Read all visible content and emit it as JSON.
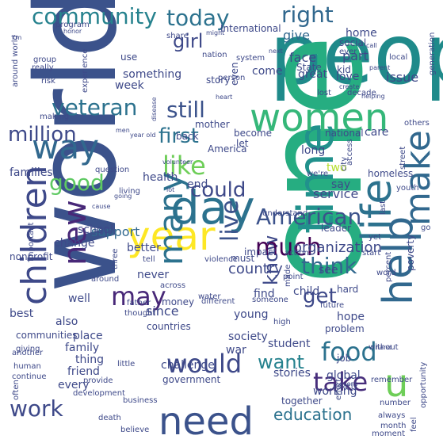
{
  "words": [
    {
      "text": "people",
      "color": "#1f8a8a"
    },
    {
      "text": "one",
      "color": "#26ad81"
    },
    {
      "text": "world",
      "color": "#3b528b"
    },
    {
      "text": "time",
      "color": "#21918c"
    },
    {
      "text": "day",
      "color": "#2c728e"
    },
    {
      "text": "year",
      "color": "#fde725"
    },
    {
      "text": "need",
      "color": "#3b528b"
    },
    {
      "text": "women",
      "color": "#35b779"
    },
    {
      "text": "life",
      "color": "#2c728e"
    },
    {
      "text": "help",
      "color": "#31688e"
    },
    {
      "text": "make",
      "color": "#31688e"
    },
    {
      "text": "children",
      "color": "#3e4989"
    },
    {
      "text": "way",
      "color": "#31688e"
    },
    {
      "text": "u",
      "color": "#6ece58"
    },
    {
      "text": "new",
      "color": "#482878"
    },
    {
      "text": "many",
      "color": "#2c728e"
    },
    {
      "text": "community",
      "color": "#26828e"
    },
    {
      "text": "today",
      "color": "#2c728e"
    },
    {
      "text": "right",
      "color": "#31688e"
    },
    {
      "text": "veteran",
      "color": "#2c728e"
    },
    {
      "text": "still",
      "color": "#3b528b"
    },
    {
      "text": "first",
      "color": "#2c728e"
    },
    {
      "text": "like",
      "color": "#6ece58"
    },
    {
      "text": "million",
      "color": "#3e4989"
    },
    {
      "text": "good",
      "color": "#5ec962"
    },
    {
      "text": "could",
      "color": "#3e4989"
    },
    {
      "text": "American",
      "color": "#3b528b"
    },
    {
      "text": "live",
      "color": "#3b528b"
    },
    {
      "text": "know",
      "color": "#3e4989"
    },
    {
      "text": "much",
      "color": "#440154"
    },
    {
      "text": "think",
      "color": "#31688e"
    },
    {
      "text": "get",
      "color": "#3e4989"
    },
    {
      "text": "food",
      "color": "#2c728e"
    },
    {
      "text": "may",
      "color": "#482878"
    },
    {
      "text": "would",
      "color": "#3e4989"
    },
    {
      "text": "want",
      "color": "#26828e"
    },
    {
      "text": "take",
      "color": "#472d7b"
    },
    {
      "text": "work",
      "color": "#3e4989"
    },
    {
      "text": "girl",
      "color": "#3e4989"
    },
    {
      "text": "organization",
      "color": "#3e4989"
    },
    {
      "text": "education",
      "color": "#2c728e"
    },
    {
      "text": "country",
      "color": "#3e4989"
    },
    {
      "text": "support",
      "color": "#31688e"
    },
    {
      "text": "service",
      "color": "#3e4989"
    },
    {
      "text": "give",
      "color": "#31688e"
    },
    {
      "text": "face",
      "color": "#3e4989"
    },
    {
      "text": "home",
      "color": "#3e4989"
    },
    {
      "text": "part",
      "color": "#3e4989"
    },
    {
      "text": "issue",
      "color": "#3e4989"
    },
    {
      "text": "love",
      "color": "#3e4989"
    },
    {
      "text": "great",
      "color": "#3e4989"
    },
    {
      "text": "come",
      "color": "#3e4989"
    },
    {
      "text": "two",
      "color": "#b5de2b"
    },
    {
      "text": "say",
      "color": "#3e4989"
    },
    {
      "text": "end",
      "color": "#3e4989"
    },
    {
      "text": "must",
      "color": "#3e4989"
    },
    {
      "text": "impact",
      "color": "#3e4989"
    },
    {
      "text": "see",
      "color": "#3e4989"
    },
    {
      "text": "find",
      "color": "#3e4989"
    },
    {
      "text": "young",
      "color": "#3e4989"
    },
    {
      "text": "society",
      "color": "#3e4989"
    },
    {
      "text": "war",
      "color": "#3e4989"
    },
    {
      "text": "since",
      "color": "#3e4989"
    },
    {
      "text": "never",
      "color": "#3e4989"
    },
    {
      "text": "well",
      "color": "#3e4989"
    },
    {
      "text": "also",
      "color": "#3e4989"
    },
    {
      "text": "family",
      "color": "#3e4989"
    },
    {
      "text": "place",
      "color": "#3e4989"
    },
    {
      "text": "thing",
      "color": "#3e4989"
    },
    {
      "text": "friend",
      "color": "#3e4989"
    },
    {
      "text": "every",
      "color": "#3e4989"
    },
    {
      "text": "best",
      "color": "#3e4989"
    },
    {
      "text": "health",
      "color": "#3e4989"
    },
    {
      "text": "better",
      "color": "#3e4989"
    },
    {
      "text": "change",
      "color": "#3e4989"
    },
    {
      "text": "school",
      "color": "#3e4989"
    },
    {
      "text": "families",
      "color": "#3e4989"
    },
    {
      "text": "something",
      "color": "#3e4989"
    },
    {
      "text": "week",
      "color": "#3e4989"
    },
    {
      "text": "mother",
      "color": "#3e4989"
    },
    {
      "text": "back",
      "color": "#3e4989"
    },
    {
      "text": "even",
      "color": "#3e4989"
    },
    {
      "text": "long",
      "color": "#3e4989"
    },
    {
      "text": "care",
      "color": "#3e4989"
    },
    {
      "text": "child",
      "color": "#3e4989"
    },
    {
      "text": "global",
      "color": "#3e4989"
    },
    {
      "text": "working",
      "color": "#3e4989"
    },
    {
      "text": "stories",
      "color": "#3e4989"
    },
    {
      "text": "hope",
      "color": "#3e4989"
    },
    {
      "text": "problem",
      "color": "#3e4989"
    },
    {
      "text": "student",
      "color": "#3e4989"
    },
    {
      "text": "job",
      "color": "#3e4989"
    },
    {
      "text": "together",
      "color": "#3e4989"
    },
    {
      "text": "challenge",
      "color": "#3e4989"
    },
    {
      "text": "government",
      "color": "#3e4989"
    },
    {
      "text": "countries",
      "color": "#3e4989"
    },
    {
      "text": "money",
      "color": "#3e4989"
    },
    {
      "text": "communities",
      "color": "#3e4989"
    },
    {
      "text": "nonprofit",
      "color": "#3e4989"
    },
    {
      "text": "poverty",
      "color": "#3e4989"
    },
    {
      "text": "leader",
      "color": "#3e4989"
    },
    {
      "text": "homeless",
      "color": "#3e4989"
    },
    {
      "text": "national",
      "color": "#3e4989"
    },
    {
      "text": "become",
      "color": "#3e4989"
    },
    {
      "text": "let",
      "color": "#3e4989"
    },
    {
      "text": "America",
      "color": "#3e4989"
    },
    {
      "text": "story",
      "color": "#3e4989"
    },
    {
      "text": "use",
      "color": "#3e4989"
    },
    {
      "text": "social",
      "color": "#3e4989"
    },
    {
      "text": "State",
      "color": "#3e4989"
    },
    {
      "text": "kid",
      "color": "#3e4989"
    },
    {
      "text": "International",
      "color": "#3e4989"
    },
    {
      "text": "program",
      "color": "#3e4989"
    },
    {
      "text": "really",
      "color": "#3e4989"
    },
    {
      "text": "group",
      "color": "#3e4989"
    },
    {
      "text": "risk",
      "color": "#3e4989"
    },
    {
      "text": "making",
      "color": "#3e4989"
    },
    {
      "text": "experience",
      "color": "#3e4989"
    },
    {
      "text": "question",
      "color": "#3e4989"
    },
    {
      "text": "living",
      "color": "#3e4989"
    },
    {
      "text": "important",
      "color": "#3e4989"
    },
    {
      "text": "giving",
      "color": "#3e4989"
    },
    {
      "text": "another",
      "color": "#3e4989"
    },
    {
      "text": "human",
      "color": "#3e4989"
    },
    {
      "text": "continue",
      "color": "#3e4989"
    },
    {
      "text": "often",
      "color": "#3e4989"
    },
    {
      "text": "provide",
      "color": "#3e4989"
    },
    {
      "text": "development",
      "color": "#3e4989"
    },
    {
      "text": "business",
      "color": "#3e4989"
    },
    {
      "text": "death",
      "color": "#3e4989"
    },
    {
      "text": "believe",
      "color": "#3e4989"
    },
    {
      "text": "little",
      "color": "#3e4989"
    },
    {
      "text": "thought",
      "color": "#3e4989"
    },
    {
      "text": "father",
      "color": "#3e4989"
    },
    {
      "text": "around",
      "color": "#3e4989"
    },
    {
      "text": "three",
      "color": "#3e4989"
    },
    {
      "text": "tell",
      "color": "#3e4989"
    },
    {
      "text": "across",
      "color": "#3e4989"
    },
    {
      "text": "violence",
      "color": "#3e4989"
    },
    {
      "text": "water",
      "color": "#3e4989"
    },
    {
      "text": "different",
      "color": "#3e4989"
    },
    {
      "text": "someone",
      "color": "#3e4989"
    },
    {
      "text": "made",
      "color": "#3e4989"
    },
    {
      "text": "action",
      "color": "#3e4989"
    },
    {
      "text": "point",
      "color": "#3e4989"
    },
    {
      "text": "hard",
      "color": "#3e4989"
    },
    {
      "text": "future",
      "color": "#3e4989"
    },
    {
      "text": "high",
      "color": "#3e4989"
    },
    {
      "text": "effort",
      "color": "#3e4989"
    },
    {
      "text": "nearly",
      "color": "#3e4989"
    },
    {
      "text": "number",
      "color": "#3e4989"
    },
    {
      "text": "always",
      "color": "#3e4989"
    },
    {
      "text": "month",
      "color": "#3e4989"
    },
    {
      "text": "moment",
      "color": "#3e4989"
    },
    {
      "text": "feel",
      "color": "#3e4989"
    },
    {
      "text": "opportunity",
      "color": "#3e4989"
    },
    {
      "text": "remember",
      "color": "#3e4989"
    },
    {
      "text": "without",
      "color": "#3e4989"
    },
    {
      "text": "word",
      "color": "#3e4989"
    },
    {
      "text": "percent",
      "color": "#3e4989"
    },
    {
      "text": "hand",
      "color": "#3e4989"
    },
    {
      "text": "event",
      "color": "#3e4989"
    },
    {
      "text": "last",
      "color": "#3e4989"
    },
    {
      "text": "yet",
      "color": "#3e4989"
    },
    {
      "text": "start",
      "color": "#3e4989"
    },
    {
      "text": "go",
      "color": "#3e4989"
    },
    {
      "text": "youth",
      "color": "#3e4989"
    },
    {
      "text": "understand",
      "color": "#3e4989"
    },
    {
      "text": "city",
      "color": "#3e4989"
    },
    {
      "text": "access",
      "color": "#3e4989"
    },
    {
      "text": "we're",
      "color": "#3e4989"
    },
    {
      "text": "others",
      "color": "#3e4989"
    },
    {
      "text": "decade",
      "color": "#3e4989"
    },
    {
      "text": "lost",
      "color": "#3e4989"
    },
    {
      "text": "heart",
      "color": "#3e4989"
    },
    {
      "text": "men",
      "color": "#3e4989"
    },
    {
      "text": "year old",
      "color": "#3e4989"
    },
    {
      "text": "disease",
      "color": "#3e4989"
    },
    {
      "text": "volunteer",
      "color": "#3e4989"
    },
    {
      "text": "going",
      "color": "#3e4989"
    },
    {
      "text": "cause",
      "color": "#3e4989"
    },
    {
      "text": "lot",
      "color": "#3e4989"
    },
    {
      "text": "person",
      "color": "#3e4989"
    },
    {
      "text": "nation",
      "color": "#3e4989"
    },
    {
      "text": "might",
      "color": "#3e4989"
    },
    {
      "text": "share",
      "color": "#3e4989"
    },
    {
      "text": "honor",
      "color": "#3e4989"
    },
    {
      "text": "I'm",
      "color": "#3e4989"
    },
    {
      "text": "around world",
      "color": "#3e4989"
    },
    {
      "text": "system",
      "color": "#3e4989"
    },
    {
      "text": "next",
      "color": "#3e4989"
    },
    {
      "text": "ever",
      "color": "#3e4989"
    },
    {
      "text": "call",
      "color": "#3e4989"
    },
    {
      "text": "create",
      "color": "#3e4989"
    },
    {
      "text": "helping",
      "color": "#3e4989"
    },
    {
      "text": "parent",
      "color": "#3e4989"
    },
    {
      "text": "local",
      "color": "#3e4989"
    },
    {
      "text": "street",
      "color": "#3e4989"
    },
    {
      "text": "generation",
      "color": "#3e4989"
    }
  ]
}
